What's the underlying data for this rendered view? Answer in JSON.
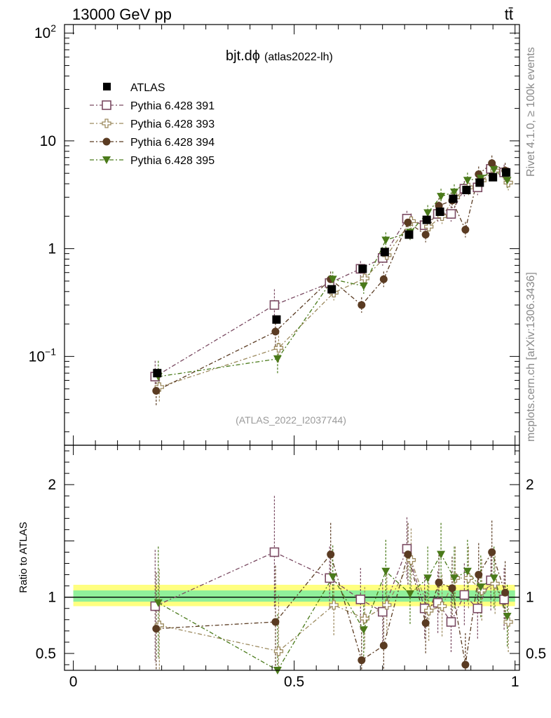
{
  "header": {
    "left": "13000 GeV pp",
    "right": "tt̄"
  },
  "side_labels": {
    "top": "Rivet 4.1.0, ≥ 100k events",
    "bottom": "mcplots.cern.ch [arXiv:1306.3436]"
  },
  "chart_data": {
    "type": "scatter",
    "title": "bjt.dϕ",
    "title_main": "bjt.dϕ",
    "title_sub": "(atlas2022-lh)",
    "watermark": "(ATLAS_2022_I2037744)",
    "xlim": [
      -0.02,
      1.01
    ],
    "ylim": [
      0.015,
      120
    ],
    "yscale": "log",
    "x_ticks": [
      {
        "v": 0,
        "label": "0"
      },
      {
        "v": 0.5,
        "label": "0.5"
      },
      {
        "v": 1,
        "label": "1"
      }
    ],
    "y_ticks": [
      {
        "v": 0.1,
        "base": "10",
        "exp": "−1"
      },
      {
        "v": 1,
        "base": "1",
        "exp": ""
      },
      {
        "v": 10,
        "base": "10",
        "exp": ""
      },
      {
        "v": 100,
        "base": "10",
        "exp": "2"
      }
    ],
    "ratio": {
      "ylabel": "Ratio to ATLAS",
      "ylim": [
        0.35,
        2.35
      ],
      "ticks": [
        {
          "v": 0.5,
          "label": "0.5"
        },
        {
          "v": 1,
          "label": "1"
        },
        {
          "v": 2,
          "label": "2"
        }
      ]
    },
    "x": [
      0.19,
      0.46,
      0.585,
      0.655,
      0.705,
      0.76,
      0.8,
      0.83,
      0.86,
      0.89,
      0.92,
      0.95,
      0.98
    ],
    "data": {
      "name": "ATLAS",
      "values": [
        0.07,
        0.22,
        0.42,
        0.65,
        0.93,
        1.35,
        1.85,
        2.2,
        2.9,
        3.5,
        4.1,
        4.6,
        5.1
      ]
    },
    "series": [
      {
        "name": "Pythia 6.428 391",
        "color": "#7a4a62",
        "marker": "open-square",
        "values": [
          0.065,
          0.3,
          0.48,
          0.65,
          0.82,
          1.9,
          1.65,
          2.1,
          2.1,
          3.6,
          3.7,
          5.5,
          5.1
        ],
        "ratio": [
          0.92,
          1.4,
          1.17,
          0.98,
          0.87,
          1.43,
          0.9,
          0.95,
          0.78,
          1.02,
          0.9,
          1.15,
          0.98
        ]
      },
      {
        "name": "Pythia 6.428 393",
        "color": "#9c8a5e",
        "marker": "open-cross",
        "values": [
          0.052,
          0.12,
          0.39,
          0.53,
          0.87,
          1.8,
          1.6,
          2.0,
          3.0,
          3.7,
          4.3,
          5.3,
          4.1
        ],
        "ratio": [
          0.75,
          0.52,
          0.93,
          0.81,
          0.93,
          1.33,
          0.88,
          0.92,
          1.17,
          1.17,
          1.06,
          1.12,
          0.78
        ]
      },
      {
        "name": "Pythia 6.428 394",
        "color": "#5a3b22",
        "marker": "filled-circle",
        "values": [
          0.048,
          0.17,
          0.52,
          0.3,
          0.52,
          1.75,
          1.35,
          2.5,
          2.8,
          1.5,
          4.9,
          6.2,
          5.3
        ],
        "ratio": [
          0.72,
          0.78,
          1.38,
          0.44,
          0.57,
          1.38,
          0.77,
          1.13,
          1.08,
          0.4,
          1.2,
          1.4,
          1.04
        ]
      },
      {
        "name": "Pythia 6.428 395",
        "color": "#4a7a1a",
        "marker": "filled-triangle",
        "values": [
          0.065,
          0.095,
          0.52,
          0.45,
          1.2,
          1.42,
          2.15,
          3.05,
          3.35,
          4.3,
          4.5,
          5.4,
          4.3
        ],
        "ratio": [
          0.95,
          0.35,
          1.18,
          0.71,
          1.23,
          1.03,
          1.17,
          1.38,
          1.17,
          1.23,
          1.09,
          1.17,
          0.83
        ]
      }
    ],
    "legend_position": "top-left"
  }
}
